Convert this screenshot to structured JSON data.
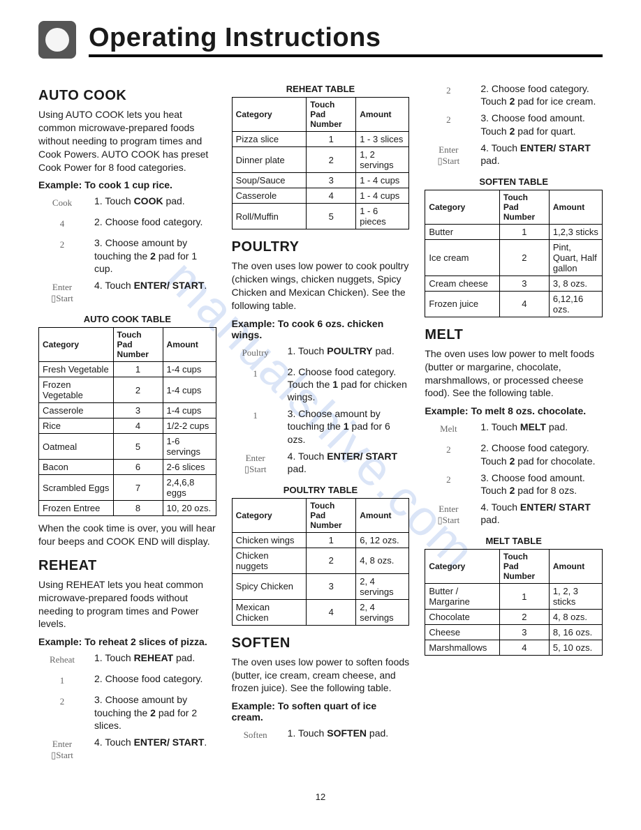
{
  "main_title": "Operating Instructions",
  "page_number": "12",
  "watermark": "manualshive.com",
  "auto_cook": {
    "heading": "AUTO COOK",
    "intro": "Using AUTO COOK lets you heat common microwave-prepared foods without needing to program times and Cook Powers. AUTO COOK has preset Cook Power for 8 food categories.",
    "example_label": "Example: To cook 1 cup rice.",
    "steps": [
      {
        "pad": "Cook",
        "num": "1.",
        "text_pre": "Touch ",
        "bold": "COOK",
        "text_post": " pad."
      },
      {
        "pad": "4",
        "num": "2.",
        "text_pre": "Choose food category.",
        "bold": "",
        "text_post": ""
      },
      {
        "pad": "2",
        "num": "3.",
        "text_pre": "Choose amount by touching the ",
        "bold": "2",
        "text_post": " pad for 1 cup."
      },
      {
        "pad": "Enter\n▯Start",
        "num": "4.",
        "text_pre": "Touch ",
        "bold": "ENTER/ START",
        "text_post": "."
      }
    ],
    "table_title": "AUTO COOK TABLE",
    "columns": [
      "Category",
      "Touch Pad Number",
      "Amount"
    ],
    "rows": [
      [
        "Fresh Vegetable",
        "1",
        "1-4 cups"
      ],
      [
        "Frozen Vegetable",
        "2",
        "1-4 cups"
      ],
      [
        "Casserole",
        "3",
        "1-4 cups"
      ],
      [
        "Rice",
        "4",
        "1/2-2 cups"
      ],
      [
        "Oatmeal",
        "5",
        "1-6 servings"
      ],
      [
        "Bacon",
        "6",
        "2-6 slices"
      ],
      [
        "Scrambled Eggs",
        "7",
        "2,4,6,8 eggs"
      ],
      [
        "Frozen Entree",
        "8",
        "10, 20 ozs."
      ]
    ],
    "outro": "When the cook time is over, you will hear four beeps and COOK END will display."
  },
  "reheat": {
    "heading": "REHEAT",
    "intro": "Using REHEAT lets you heat common microwave-prepared foods without needing to program times and Power levels.",
    "example_label": "Example: To reheat 2 slices of pizza.",
    "steps": [
      {
        "pad": "Reheat",
        "num": "1.",
        "text_pre": "Touch ",
        "bold": "REHEAT",
        "text_post": " pad."
      },
      {
        "pad": "1",
        "num": "2.",
        "text_pre": "Choose food category.",
        "bold": "",
        "text_post": ""
      },
      {
        "pad": "2",
        "num": "3.",
        "text_pre": "Choose amount by touching the ",
        "bold": "2",
        "text_post": " pad for 2 slices."
      },
      {
        "pad": "Enter\n▯Start",
        "num": "4.",
        "text_pre": "Touch ",
        "bold": "ENTER/ START",
        "text_post": "."
      }
    ],
    "table_title": "REHEAT TABLE",
    "columns": [
      "Category",
      "Touch Pad Number",
      "Amount"
    ],
    "rows": [
      [
        "Pizza slice",
        "1",
        "1 - 3 slices"
      ],
      [
        "Dinner plate",
        "2",
        "1, 2 servings"
      ],
      [
        "Soup/Sauce",
        "3",
        "1 - 4 cups"
      ],
      [
        "Casserole",
        "4",
        "1 - 4 cups"
      ],
      [
        "Roll/Muffin",
        "5",
        "1 - 6 pieces"
      ]
    ]
  },
  "poultry": {
    "heading": "POULTRY",
    "intro": "The oven uses low power to cook poultry (chicken wings, chicken nuggets, Spicy Chicken and Mexican Chicken). See the following table.",
    "example_label": "Example: To cook 6 ozs. chicken wings.",
    "steps": [
      {
        "pad": "Poultry",
        "num": "1.",
        "text_pre": "Touch ",
        "bold": "POULTRY",
        "text_post": " pad."
      },
      {
        "pad": "1",
        "num": "2.",
        "text_pre": "Choose food category. Touch the ",
        "bold": "1",
        "text_post": " pad for chicken wings."
      },
      {
        "pad": "1",
        "num": "3.",
        "text_pre": "Choose amount by touching the ",
        "bold": "1",
        "text_post": " pad for 6 ozs."
      },
      {
        "pad": "Enter\n▯Start",
        "num": "4.",
        "text_pre": "Touch ",
        "bold": "ENTER/ START",
        "text_post": " pad."
      }
    ],
    "table_title": "POULTRY TABLE",
    "columns": [
      "Category",
      "Touch Pad Number",
      "Amount"
    ],
    "rows": [
      [
        "Chicken wings",
        "1",
        "6, 12 ozs."
      ],
      [
        "Chicken nuggets",
        "2",
        "4, 8 ozs."
      ],
      [
        "Spicy Chicken",
        "3",
        "2, 4 servings"
      ],
      [
        "Mexican Chicken",
        "4",
        "2, 4 servings"
      ]
    ]
  },
  "soften": {
    "heading": "SOFTEN",
    "intro": "The oven uses low power to soften foods (butter, ice cream, cream cheese, and frozen juice). See the following table.",
    "example_label": "Example: To soften quart of ice cream.",
    "steps_a": [
      {
        "pad": "Soften",
        "num": "1.",
        "text_pre": "Touch ",
        "bold": "SOFTEN",
        "text_post": " pad."
      }
    ],
    "steps_b": [
      {
        "pad": "2",
        "num": "2.",
        "text_pre": "Choose food category. Touch ",
        "bold": "2",
        "text_post": " pad for ice cream."
      },
      {
        "pad": "2",
        "num": "3.",
        "text_pre": "Choose food amount. Touch ",
        "bold": "2",
        "text_post": " pad for quart."
      },
      {
        "pad": "Enter\n▯Start",
        "num": "4.",
        "text_pre": "Touch ",
        "bold": "ENTER/ START",
        "text_post": " pad."
      }
    ],
    "table_title": "SOFTEN TABLE",
    "columns": [
      "Category",
      "Touch Pad Number",
      "Amount"
    ],
    "rows": [
      [
        "Butter",
        "1",
        "1,2,3 sticks"
      ],
      [
        "Ice cream",
        "2",
        "Pint, Quart, Half gallon"
      ],
      [
        "Cream cheese",
        "3",
        "3, 8 ozs."
      ],
      [
        "Frozen juice",
        "4",
        "6,12,16 ozs."
      ]
    ]
  },
  "melt": {
    "heading": "MELT",
    "intro": "The oven uses low power to melt foods (butter or margarine, chocolate, marshmallows, or processed cheese food). See the following table.",
    "example_label": "Example:  To melt 8 ozs. chocolate.",
    "steps": [
      {
        "pad": "Melt",
        "num": "1.",
        "text_pre": "Touch ",
        "bold": "MELT",
        "text_post": " pad."
      },
      {
        "pad": "2",
        "num": "2.",
        "text_pre": "Choose food category. Touch ",
        "bold": "2",
        "text_post": " pad for chocolate."
      },
      {
        "pad": "2",
        "num": "3.",
        "text_pre": "Choose food amount. Touch ",
        "bold": "2",
        "text_post": " pad for 8 ozs."
      },
      {
        "pad": "Enter\n▯Start",
        "num": "4.",
        "text_pre": "Touch ",
        "bold": "ENTER/ START",
        "text_post": " pad."
      }
    ],
    "table_title": "MELT TABLE",
    "columns": [
      "Category",
      "Touch Pad Number",
      "Amount"
    ],
    "rows": [
      [
        "Butter / Margarine",
        "1",
        "1, 2, 3 sticks"
      ],
      [
        "Chocolate",
        "2",
        "4, 8 ozs."
      ],
      [
        "Cheese",
        "3",
        "8, 16 ozs."
      ],
      [
        "Marshmallows",
        "4",
        "5, 10 ozs."
      ]
    ]
  }
}
